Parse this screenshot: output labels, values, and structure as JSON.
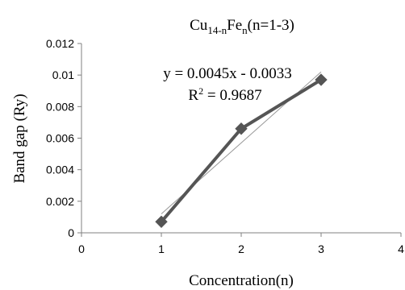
{
  "chart_data": {
    "type": "scatter",
    "title": {
      "base": "Cu",
      "sub1": "14-n",
      "mid": "Fe",
      "sub2": "n",
      "tail": "(n=1-3)"
    },
    "xlabel": "Concentration(n)",
    "ylabel": "Band gap (Ry)",
    "xlim": [
      0,
      4
    ],
    "ylim": [
      0,
      0.012
    ],
    "x_ticks": [
      "0",
      "1",
      "2",
      "3",
      "4"
    ],
    "y_ticks": [
      "0",
      "0.002",
      "0.004",
      "0.006",
      "0.008",
      "0.01",
      "0.012"
    ],
    "grid": false,
    "series": [
      {
        "x": [
          1,
          2,
          3
        ],
        "values": [
          0.0007,
          0.0066,
          0.0097
        ],
        "color": "#555555",
        "marker": "diamond"
      }
    ],
    "trendline": {
      "slope": 0.0045,
      "intercept": -0.0033,
      "equation": "y = 0.0045x - 0.0033",
      "r2": {
        "prefix": "R",
        "sup": "2",
        "value": " = 0.9687"
      },
      "color": "#999999"
    }
  }
}
